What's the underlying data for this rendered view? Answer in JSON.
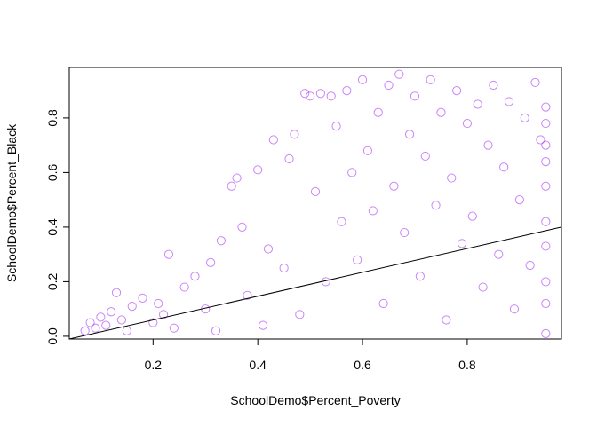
{
  "chart_data": {
    "type": "scatter",
    "title": "",
    "xlabel": "SchoolDemo$Percent_Poverty",
    "ylabel": "SchoolDemo$Percent_Black",
    "xlim": [
      0.04,
      0.98
    ],
    "ylim": [
      -0.01,
      0.985
    ],
    "xticks": [
      0.2,
      0.4,
      0.6,
      0.8
    ],
    "xtick_labels": [
      "0.2",
      "0.4",
      "0.6",
      "0.8"
    ],
    "yticks": [
      0.0,
      0.2,
      0.4,
      0.6,
      0.8
    ],
    "ytick_labels": [
      "0.0",
      "0.2",
      "0.4",
      "0.6",
      "0.8"
    ],
    "grid": false,
    "legend": "none",
    "marker": "open-circle",
    "point_color": "#A020F0",
    "line_color": "#000000",
    "regression_line": {
      "x": [
        0.04,
        0.98
      ],
      "y": [
        -0.01,
        0.4
      ]
    },
    "points": [
      {
        "x": 0.07,
        "y": 0.02
      },
      {
        "x": 0.08,
        "y": 0.05
      },
      {
        "x": 0.09,
        "y": 0.03
      },
      {
        "x": 0.1,
        "y": 0.07
      },
      {
        "x": 0.11,
        "y": 0.04
      },
      {
        "x": 0.12,
        "y": 0.09
      },
      {
        "x": 0.13,
        "y": 0.16
      },
      {
        "x": 0.14,
        "y": 0.06
      },
      {
        "x": 0.15,
        "y": 0.02
      },
      {
        "x": 0.16,
        "y": 0.11
      },
      {
        "x": 0.18,
        "y": 0.14
      },
      {
        "x": 0.2,
        "y": 0.05
      },
      {
        "x": 0.21,
        "y": 0.12
      },
      {
        "x": 0.22,
        "y": 0.08
      },
      {
        "x": 0.23,
        "y": 0.3
      },
      {
        "x": 0.24,
        "y": 0.03
      },
      {
        "x": 0.26,
        "y": 0.18
      },
      {
        "x": 0.28,
        "y": 0.22
      },
      {
        "x": 0.3,
        "y": 0.1
      },
      {
        "x": 0.31,
        "y": 0.27
      },
      {
        "x": 0.32,
        "y": 0.02
      },
      {
        "x": 0.33,
        "y": 0.35
      },
      {
        "x": 0.35,
        "y": 0.55
      },
      {
        "x": 0.36,
        "y": 0.58
      },
      {
        "x": 0.37,
        "y": 0.4
      },
      {
        "x": 0.38,
        "y": 0.15
      },
      {
        "x": 0.4,
        "y": 0.61
      },
      {
        "x": 0.41,
        "y": 0.04
      },
      {
        "x": 0.42,
        "y": 0.32
      },
      {
        "x": 0.43,
        "y": 0.72
      },
      {
        "x": 0.45,
        "y": 0.25
      },
      {
        "x": 0.46,
        "y": 0.65
      },
      {
        "x": 0.47,
        "y": 0.74
      },
      {
        "x": 0.48,
        "y": 0.08
      },
      {
        "x": 0.49,
        "y": 0.89
      },
      {
        "x": 0.5,
        "y": 0.88
      },
      {
        "x": 0.51,
        "y": 0.53
      },
      {
        "x": 0.52,
        "y": 0.89
      },
      {
        "x": 0.53,
        "y": 0.2
      },
      {
        "x": 0.54,
        "y": 0.88
      },
      {
        "x": 0.55,
        "y": 0.77
      },
      {
        "x": 0.56,
        "y": 0.42
      },
      {
        "x": 0.57,
        "y": 0.9
      },
      {
        "x": 0.58,
        "y": 0.6
      },
      {
        "x": 0.59,
        "y": 0.28
      },
      {
        "x": 0.6,
        "y": 0.94
      },
      {
        "x": 0.61,
        "y": 0.68
      },
      {
        "x": 0.62,
        "y": 0.46
      },
      {
        "x": 0.63,
        "y": 0.82
      },
      {
        "x": 0.64,
        "y": 0.12
      },
      {
        "x": 0.65,
        "y": 0.92
      },
      {
        "x": 0.66,
        "y": 0.55
      },
      {
        "x": 0.67,
        "y": 0.96
      },
      {
        "x": 0.68,
        "y": 0.38
      },
      {
        "x": 0.69,
        "y": 0.74
      },
      {
        "x": 0.7,
        "y": 0.88
      },
      {
        "x": 0.71,
        "y": 0.22
      },
      {
        "x": 0.72,
        "y": 0.66
      },
      {
        "x": 0.73,
        "y": 0.94
      },
      {
        "x": 0.74,
        "y": 0.48
      },
      {
        "x": 0.75,
        "y": 0.82
      },
      {
        "x": 0.76,
        "y": 0.06
      },
      {
        "x": 0.77,
        "y": 0.58
      },
      {
        "x": 0.78,
        "y": 0.9
      },
      {
        "x": 0.79,
        "y": 0.34
      },
      {
        "x": 0.8,
        "y": 0.78
      },
      {
        "x": 0.81,
        "y": 0.44
      },
      {
        "x": 0.82,
        "y": 0.85
      },
      {
        "x": 0.83,
        "y": 0.18
      },
      {
        "x": 0.84,
        "y": 0.7
      },
      {
        "x": 0.85,
        "y": 0.92
      },
      {
        "x": 0.86,
        "y": 0.3
      },
      {
        "x": 0.87,
        "y": 0.62
      },
      {
        "x": 0.88,
        "y": 0.86
      },
      {
        "x": 0.89,
        "y": 0.1
      },
      {
        "x": 0.9,
        "y": 0.5
      },
      {
        "x": 0.91,
        "y": 0.8
      },
      {
        "x": 0.92,
        "y": 0.26
      },
      {
        "x": 0.93,
        "y": 0.93
      },
      {
        "x": 0.94,
        "y": 0.72
      },
      {
        "x": 0.95,
        "y": 0.84
      },
      {
        "x": 0.95,
        "y": 0.64
      },
      {
        "x": 0.95,
        "y": 0.42
      },
      {
        "x": 0.95,
        "y": 0.2
      },
      {
        "x": 0.95,
        "y": 0.01
      },
      {
        "x": 0.95,
        "y": 0.78
      },
      {
        "x": 0.95,
        "y": 0.55
      },
      {
        "x": 0.95,
        "y": 0.33
      },
      {
        "x": 0.95,
        "y": 0.12
      },
      {
        "x": 0.95,
        "y": 0.7
      }
    ]
  }
}
